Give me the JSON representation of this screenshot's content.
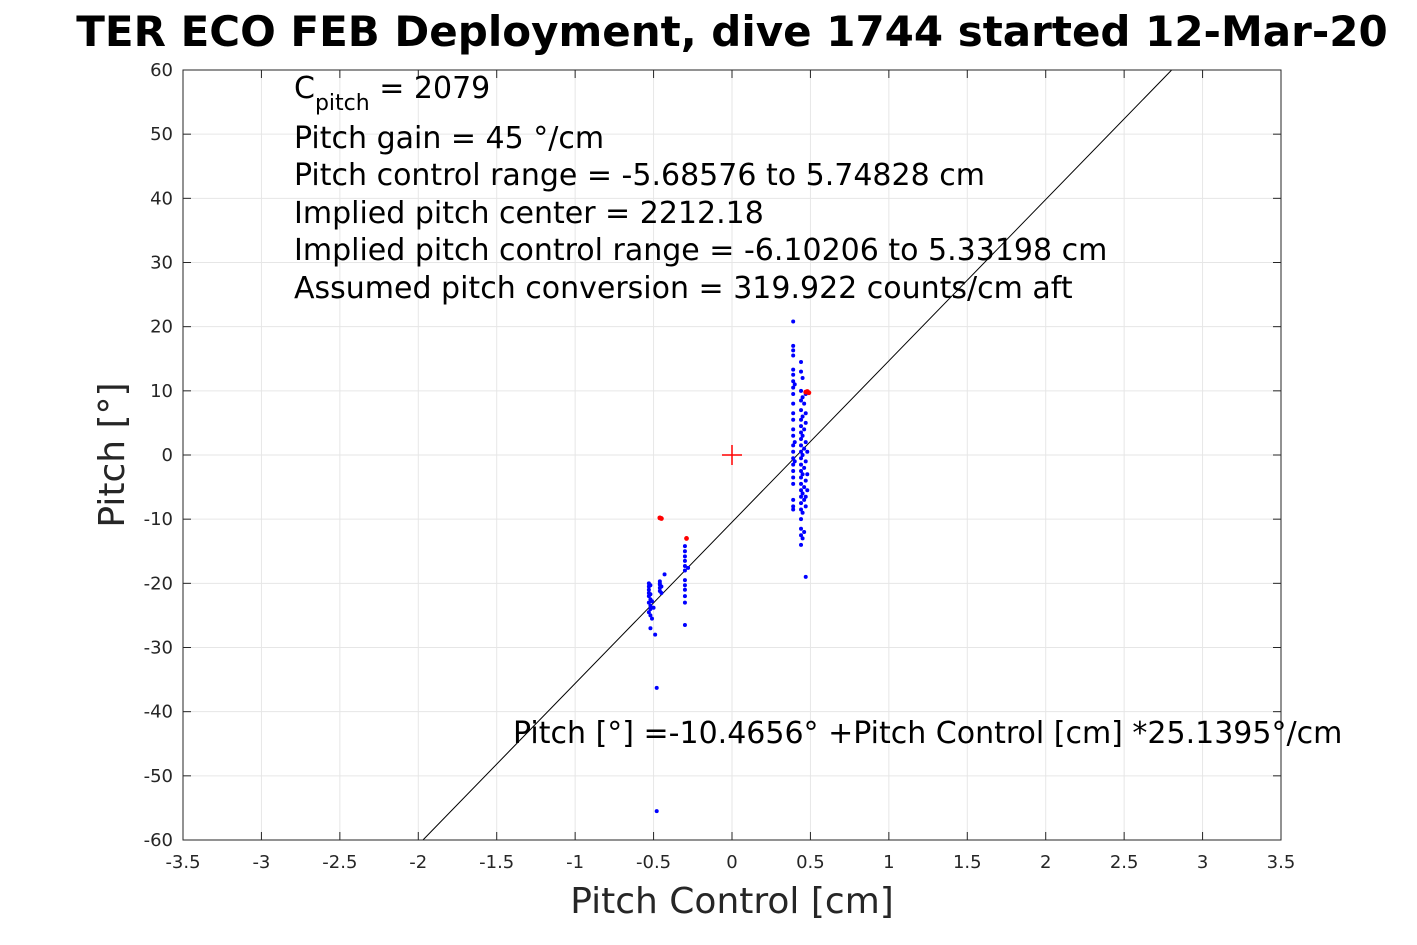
{
  "chart_data": {
    "type": "scatter",
    "title": "TER ECO FEB Deployment, dive 1744 started 12-Mar-20",
    "xlabel": "Pitch Control [cm]",
    "ylabel": "Pitch [°]",
    "xlim": [
      -3.5,
      3.5
    ],
    "ylim": [
      -60,
      60
    ],
    "x_ticks": [
      "-3.5",
      "-3",
      "-2.5",
      "-2",
      "-1.5",
      "-1",
      "-0.5",
      "0",
      "0.5",
      "1",
      "1.5",
      "2",
      "2.5",
      "3",
      "3.5"
    ],
    "y_ticks": [
      "-60",
      "-50",
      "-40",
      "-30",
      "-20",
      "-10",
      "0",
      "10",
      "20",
      "30",
      "40",
      "50",
      "60"
    ],
    "grid": true,
    "annotations": {
      "c_pitch_prefix": "C",
      "c_pitch_sub": "pitch",
      "c_pitch_value": " = 2079",
      "pitch_gain": "Pitch gain = 45 °/cm",
      "control_range": "Pitch control range = -5.68576 to 5.74828 cm",
      "implied_center": "Implied pitch center = 2212.18",
      "implied_range": "Implied pitch control range = -6.10206 to 5.33198 cm",
      "conversion": "Assumed pitch conversion = 319.922 counts/cm aft",
      "fit_equation": "Pitch [°] =-10.4656° +Pitch Control [cm] *25.1395°/cm"
    },
    "fit_line": {
      "intercept": -10.4656,
      "slope": 25.1395
    },
    "center_marker": {
      "x": 0,
      "y": 0,
      "color": "#ff0000"
    },
    "series": [
      {
        "color": "#0000ff",
        "points": [
          [
            -0.53,
            -20.0
          ],
          [
            -0.53,
            -20.5
          ],
          [
            -0.53,
            -21.0
          ],
          [
            -0.53,
            -21.5
          ],
          [
            -0.53,
            -22.0
          ],
          [
            -0.52,
            -22.5
          ],
          [
            -0.53,
            -23.0
          ],
          [
            -0.52,
            -23.5
          ],
          [
            -0.52,
            -24.0
          ],
          [
            -0.53,
            -24.5
          ],
          [
            -0.52,
            -25.0
          ],
          [
            -0.51,
            -25.5
          ],
          [
            -0.52,
            -27.0
          ],
          [
            -0.49,
            -28.0
          ],
          [
            -0.51,
            -22.8
          ],
          [
            -0.5,
            -23.8
          ],
          [
            -0.52,
            -20.3
          ],
          [
            -0.52,
            -21.7
          ],
          [
            -0.48,
            -36.3
          ],
          [
            -0.48,
            -55.5
          ],
          [
            -0.46,
            -19.7
          ],
          [
            -0.46,
            -20.2
          ],
          [
            -0.46,
            -20.7
          ],
          [
            -0.46,
            -21.2
          ],
          [
            -0.45,
            -21.5
          ],
          [
            -0.46,
            -20.0
          ],
          [
            -0.45,
            -20.5
          ],
          [
            -0.43,
            -18.6
          ],
          [
            -0.3,
            -14.2
          ],
          [
            -0.3,
            -15.0
          ],
          [
            -0.3,
            -15.8
          ],
          [
            -0.3,
            -16.5
          ],
          [
            -0.3,
            -17.3
          ],
          [
            -0.3,
            -18.0
          ],
          [
            -0.3,
            -19.5
          ],
          [
            -0.3,
            -20.3
          ],
          [
            -0.3,
            -21.0
          ],
          [
            -0.3,
            -22.0
          ],
          [
            -0.3,
            -23.0
          ],
          [
            -0.3,
            -26.5
          ],
          [
            -0.28,
            -17.6
          ],
          [
            0.39,
            20.8
          ],
          [
            0.39,
            17.0
          ],
          [
            0.39,
            16.3
          ],
          [
            0.39,
            15.5
          ],
          [
            0.39,
            13.3
          ],
          [
            0.39,
            12.5
          ],
          [
            0.39,
            11.5
          ],
          [
            0.39,
            10.5
          ],
          [
            0.39,
            9.5
          ],
          [
            0.39,
            8.0
          ],
          [
            0.39,
            6.5
          ],
          [
            0.39,
            5.5
          ],
          [
            0.39,
            4.0
          ],
          [
            0.39,
            3.0
          ],
          [
            0.39,
            1.5
          ],
          [
            0.39,
            0.5
          ],
          [
            0.39,
            -0.5
          ],
          [
            0.39,
            -1.5
          ],
          [
            0.39,
            -2.5
          ],
          [
            0.39,
            -3.5
          ],
          [
            0.39,
            -4.5
          ],
          [
            0.39,
            -7.0
          ],
          [
            0.39,
            -8.0
          ],
          [
            0.39,
            -8.5
          ],
          [
            0.4,
            11.0
          ],
          [
            0.4,
            2.0
          ],
          [
            0.4,
            -1.0
          ],
          [
            0.44,
            14.5
          ],
          [
            0.44,
            13.0
          ],
          [
            0.44,
            10.0
          ],
          [
            0.44,
            8.5
          ],
          [
            0.44,
            7.0
          ],
          [
            0.44,
            5.5
          ],
          [
            0.44,
            4.5
          ],
          [
            0.44,
            3.5
          ],
          [
            0.44,
            2.5
          ],
          [
            0.44,
            1.5
          ],
          [
            0.44,
            0.5
          ],
          [
            0.44,
            -0.5
          ],
          [
            0.44,
            -1.5
          ],
          [
            0.44,
            -2.5
          ],
          [
            0.44,
            -3.5
          ],
          [
            0.44,
            -4.5
          ],
          [
            0.44,
            -5.5
          ],
          [
            0.44,
            -6.5
          ],
          [
            0.44,
            -7.5
          ],
          [
            0.44,
            -8.5
          ],
          [
            0.44,
            -10.0
          ],
          [
            0.44,
            -11.5
          ],
          [
            0.44,
            -12.5
          ],
          [
            0.44,
            -14.0
          ],
          [
            0.45,
            12.0
          ],
          [
            0.45,
            9.0
          ],
          [
            0.45,
            6.0
          ],
          [
            0.45,
            3.0
          ],
          [
            0.45,
            0.0
          ],
          [
            0.45,
            -3.0
          ],
          [
            0.45,
            -6.0
          ],
          [
            0.45,
            -9.0
          ],
          [
            0.45,
            -13.0
          ],
          [
            0.46,
            8.0
          ],
          [
            0.46,
            4.0
          ],
          [
            0.46,
            1.0
          ],
          [
            0.46,
            -2.0
          ],
          [
            0.46,
            -5.0
          ],
          [
            0.46,
            -7.0
          ],
          [
            0.46,
            -12.0
          ],
          [
            0.47,
            -19.0
          ],
          [
            0.47,
            9.5
          ],
          [
            0.47,
            6.5
          ],
          [
            0.47,
            5.0
          ],
          [
            0.47,
            2.0
          ],
          [
            0.47,
            -1.0
          ],
          [
            0.47,
            -4.0
          ],
          [
            0.47,
            -6.5
          ],
          [
            0.47,
            -8.0
          ],
          [
            0.48,
            -3.0
          ],
          [
            0.48,
            0.5
          ],
          [
            0.48,
            -5.5
          ]
        ]
      },
      {
        "color": "#ff0000",
        "points": [
          [
            -0.46,
            -9.8
          ],
          [
            -0.45,
            -9.9
          ],
          [
            -0.29,
            -13.0
          ],
          [
            0.47,
            9.8
          ],
          [
            0.48,
            9.9
          ],
          [
            0.49,
            9.7
          ]
        ]
      }
    ]
  }
}
